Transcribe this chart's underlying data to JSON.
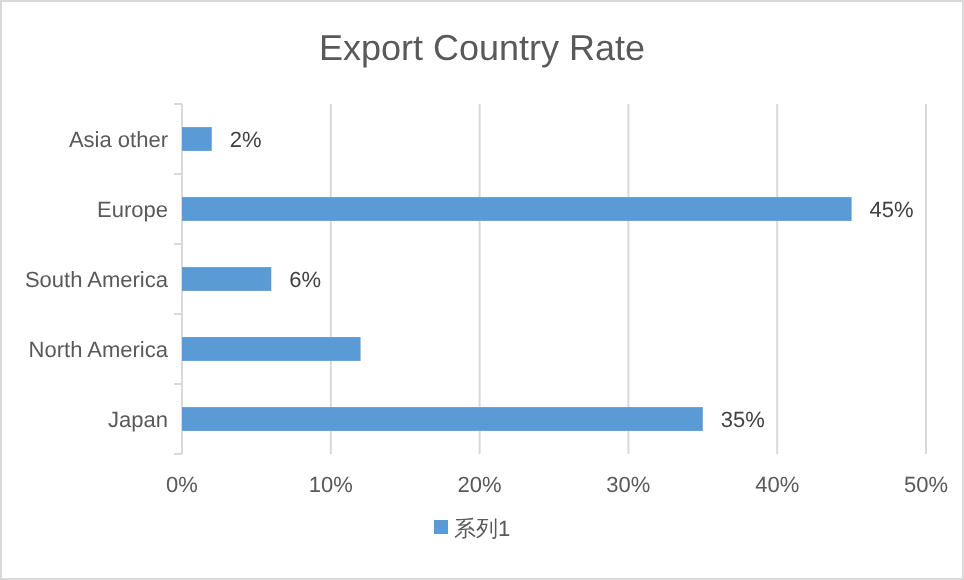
{
  "chart_data": {
    "type": "bar",
    "orientation": "horizontal",
    "title": "Export Country Rate",
    "categories": [
      "Asia other",
      "Europe",
      "South America",
      "North America",
      "Japan"
    ],
    "series": [
      {
        "name": "系列1",
        "color": "#5b9bd5",
        "values": [
          2,
          45,
          6,
          12,
          35
        ],
        "value_labels": [
          "2%",
          "45%",
          "6%",
          null,
          "35%"
        ]
      }
    ],
    "xlim": [
      0,
      50
    ],
    "xticks": [
      {
        "value": 0,
        "label": "0%"
      },
      {
        "value": 10,
        "label": "10%"
      },
      {
        "value": 20,
        "label": "20%"
      },
      {
        "value": 30,
        "label": "30%"
      },
      {
        "value": 40,
        "label": "40%"
      },
      {
        "value": 50,
        "label": "50%"
      }
    ],
    "grid": "x",
    "legend": "bottom"
  }
}
